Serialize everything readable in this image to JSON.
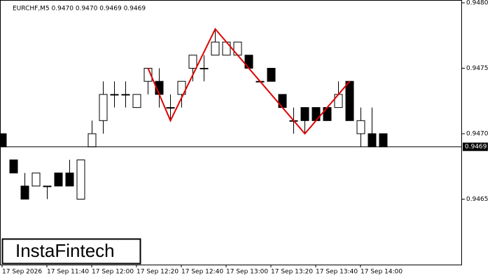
{
  "chart_data": {
    "type": "candlestick",
    "header": "EURCHF,M5  0.9470 0.9470 0.9469 0.9469",
    "categories": [
      "17 Sep 2026",
      null,
      null,
      null,
      "17 Sep 11:40",
      null,
      null,
      null,
      "17 Sep 12:00",
      null,
      null,
      null,
      "17 Sep 12:20",
      null,
      null,
      null,
      "17 Sep 12:40",
      null,
      null,
      null,
      "17 Sep 13:00",
      null,
      null,
      null,
      "17 Sep 13:20",
      null,
      null,
      null,
      "17 Sep 13:40",
      null,
      null,
      null,
      "17 Sep 14:00",
      null,
      null
    ],
    "open": [
      0.947,
      0.9468,
      0.9466,
      0.9466,
      0.9466,
      0.9467,
      0.9467,
      0.9465,
      0.9469,
      0.9471,
      0.9473,
      0.9473,
      0.9472,
      0.9474,
      0.9474,
      0.9472,
      0.9473,
      0.9475,
      0.9475,
      0.9476,
      0.9476,
      0.9476,
      0.9476,
      0.9474,
      0.9475,
      0.9473,
      0.9471,
      0.9472,
      0.9472,
      0.9472,
      0.9472,
      0.9474,
      0.947,
      0.947,
      0.947
    ],
    "high": [
      0.947,
      0.9468,
      0.9467,
      0.9467,
      0.9466,
      0.9467,
      0.9468,
      0.9468,
      0.9471,
      0.9474,
      0.9474,
      0.9474,
      0.9473,
      0.9475,
      0.9475,
      0.9473,
      0.9474,
      0.9476,
      0.9476,
      0.9478,
      0.9477,
      0.9477,
      0.9476,
      0.9474,
      0.9475,
      0.9473,
      0.9472,
      0.9472,
      0.9472,
      0.9472,
      0.9474,
      0.9474,
      0.9472,
      0.9472,
      0.947
    ],
    "low": [
      0.9469,
      0.9467,
      0.9465,
      0.9466,
      0.9465,
      0.9466,
      0.9466,
      0.9465,
      0.9469,
      0.947,
      0.9472,
      0.9472,
      0.9472,
      0.9473,
      0.9472,
      0.9471,
      0.9472,
      0.9474,
      0.9474,
      0.9476,
      0.9476,
      0.9476,
      0.9475,
      0.9474,
      0.9474,
      0.9472,
      0.947,
      0.947,
      0.9471,
      0.9471,
      0.9472,
      0.9471,
      0.9469,
      0.9469,
      0.9469
    ],
    "close": [
      0.9469,
      0.9467,
      0.9465,
      0.9467,
      0.9466,
      0.9466,
      0.9466,
      0.9468,
      0.947,
      0.9473,
      0.9473,
      0.9473,
      0.9473,
      0.9475,
      0.9473,
      0.9472,
      0.9474,
      0.9476,
      0.9475,
      0.9477,
      0.9477,
      0.9477,
      0.9475,
      0.9474,
      0.9474,
      0.9472,
      0.9471,
      0.9471,
      0.9471,
      0.9471,
      0.9473,
      0.9471,
      0.9471,
      0.9469,
      0.9469
    ],
    "ylim": [
      0.946,
      0.948
    ],
    "yticks": [
      {
        "value": 0.948,
        "label": "0.9480"
      },
      0.9475,
      {
        "value": 0.947,
        "label": "0.9470"
      },
      0.9465
    ],
    "current_price": 0.9469,
    "pattern": {
      "color": "#e00000",
      "x": [
        13,
        15,
        19,
        22,
        27,
        31
      ],
      "values": [
        0.9475,
        0.9471,
        0.9478,
        0.9475,
        0.947,
        0.9474
      ]
    }
  },
  "logo": "InstaFintech"
}
